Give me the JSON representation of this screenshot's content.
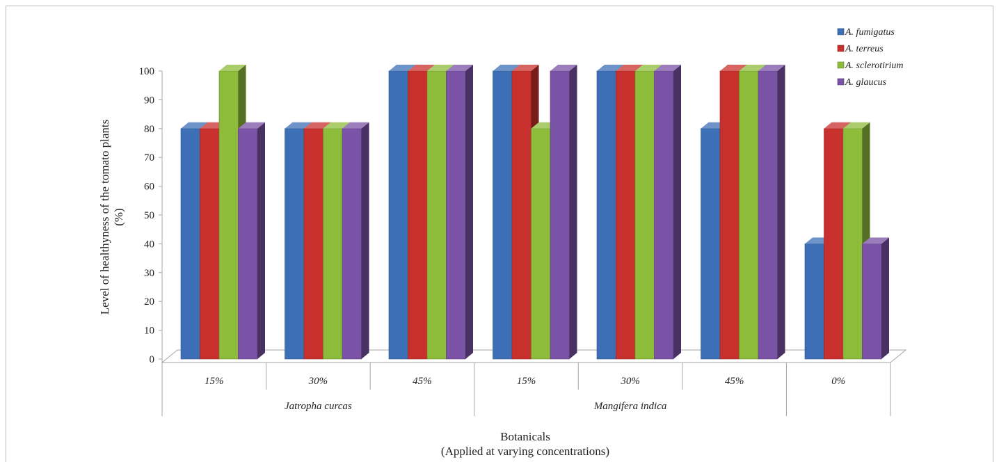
{
  "chart_data": {
    "type": "bar",
    "title": "",
    "ylabel": "Level of healthyness of the tomato plants (%)",
    "ylabel_lines": [
      "Level of healthyness of the tomato plants",
      "(%)"
    ],
    "xlabel": "Botanicals (Applied at varying concentrations)",
    "xlabel_lines": [
      "Botanicals",
      "(Applied at varying concentrations)"
    ],
    "ylim": [
      0,
      100
    ],
    "yticks": [
      0,
      10,
      20,
      30,
      40,
      50,
      60,
      70,
      80,
      90,
      100
    ],
    "three_d": true,
    "grid": false,
    "legend_position": "top-right",
    "categories": [
      "15%",
      "30%",
      "45%",
      "15%",
      "30%",
      "45%",
      "0%"
    ],
    "groups": [
      {
        "label": "Jatropha curcas",
        "span": 3
      },
      {
        "label": "Mangifera indica",
        "span": 3
      },
      {
        "label": "",
        "span": 1
      }
    ],
    "series": [
      {
        "name": "A. fumigatus",
        "color": "#3c6fb5",
        "values": [
          80,
          80,
          100,
          100,
          100,
          80,
          40
        ]
      },
      {
        "name": "A. terreus",
        "color": "#c8302d",
        "values": [
          80,
          80,
          100,
          100,
          100,
          100,
          80
        ]
      },
      {
        "name": "A. sclerotirium",
        "color": "#8dbb3a",
        "values": [
          100,
          80,
          100,
          80,
          100,
          100,
          80
        ]
      },
      {
        "name": "A. glaucus",
        "color": "#7a52a6",
        "values": [
          80,
          80,
          100,
          100,
          100,
          100,
          40
        ]
      }
    ]
  }
}
